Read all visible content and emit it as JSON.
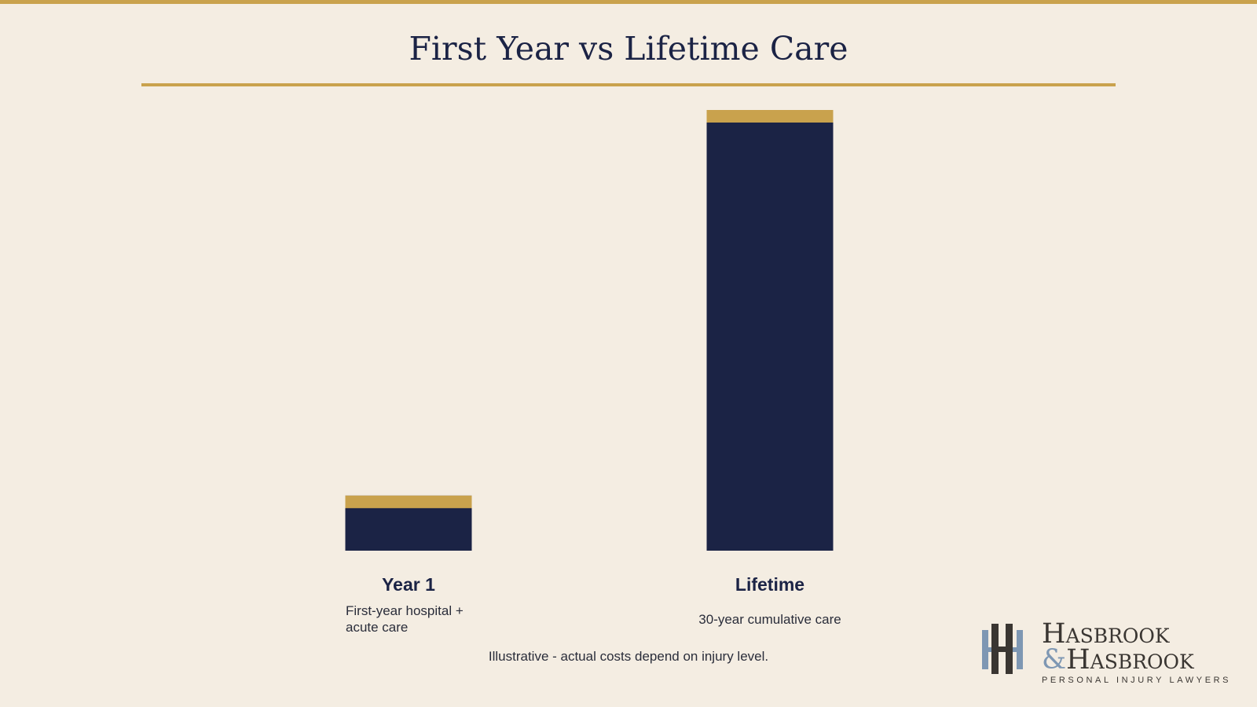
{
  "chart_data": {
    "type": "bar",
    "title": "First Year vs Lifetime Care",
    "categories": [
      "Year 1",
      "Lifetime"
    ],
    "descriptions": [
      "First-year hospital + acute care",
      "30-year cumulative care"
    ],
    "values": [
      1.0,
      8.0
    ],
    "footnote": "Illustrative - actual costs depend on injury level.",
    "colors": {
      "bar": "#1b2345",
      "bar_cap": "#c9a24d",
      "accent": "#c9a24d",
      "background": "#f4ede2"
    },
    "grid": false,
    "legend": "none"
  },
  "logo": {
    "line1": "Hasbrook",
    "amp": "&",
    "line2": "Hasbrook",
    "tagline": "PERSONAL INJURY LAWYERS"
  }
}
